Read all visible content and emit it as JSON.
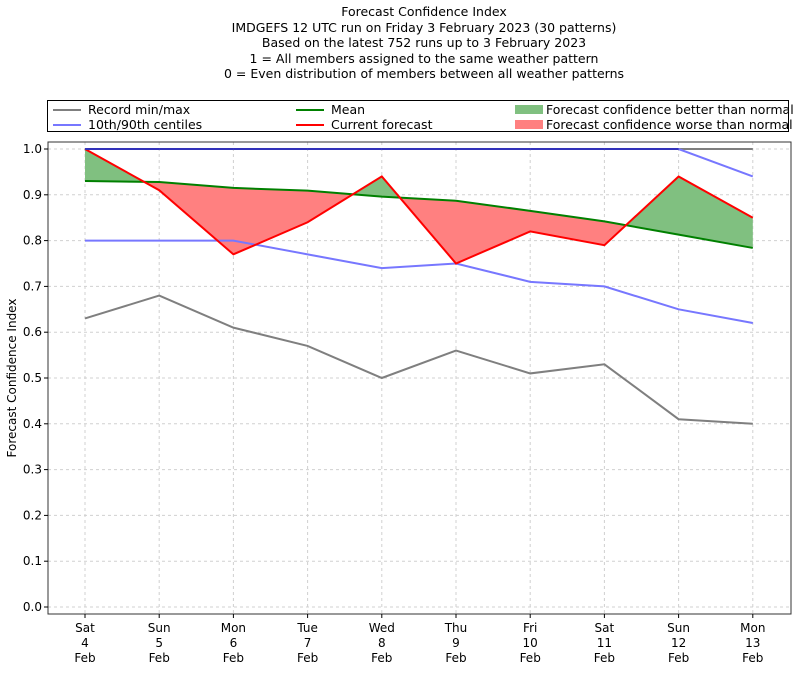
{
  "chart_data": {
    "type": "line",
    "title_lines": [
      "Forecast Confidence Index",
      "IMDGEFS 12 UTC run on Friday 3 February 2023 (30 patterns)",
      "Based on the latest 752 runs up to 3 February 2023",
      "1 = All members assigned to the same weather pattern",
      "0 = Even distribution of members between all weather patterns"
    ],
    "xlabel": "",
    "ylabel": "Forecast Confidence Index",
    "ylim": [
      0.0,
      1.0
    ],
    "yticks": [
      "0.0",
      "0.1",
      "0.2",
      "0.3",
      "0.4",
      "0.5",
      "0.6",
      "0.7",
      "0.8",
      "0.9",
      "1.0"
    ],
    "categories": [
      {
        "day": "Sat",
        "date": "4",
        "month": "Feb"
      },
      {
        "day": "Sun",
        "date": "5",
        "month": "Feb"
      },
      {
        "day": "Mon",
        "date": "6",
        "month": "Feb"
      },
      {
        "day": "Tue",
        "date": "7",
        "month": "Feb"
      },
      {
        "day": "Wed",
        "date": "8",
        "month": "Feb"
      },
      {
        "day": "Thu",
        "date": "9",
        "month": "Feb"
      },
      {
        "day": "Fri",
        "date": "10",
        "month": "Feb"
      },
      {
        "day": "Sat",
        "date": "11",
        "month": "Feb"
      },
      {
        "day": "Sun",
        "date": "12",
        "month": "Feb"
      },
      {
        "day": "Mon",
        "date": "13",
        "month": "Feb"
      }
    ],
    "grid": true,
    "legend_placement": "top",
    "series": [
      {
        "name": "Record max",
        "legend": "Record min/max",
        "color": "#7f7f7f",
        "values": [
          1.0,
          1.0,
          1.0,
          1.0,
          1.0,
          1.0,
          1.0,
          1.0,
          1.0,
          1.0
        ]
      },
      {
        "name": "Record min",
        "legend": "Record min/max",
        "color": "#7f7f7f",
        "values": [
          0.63,
          0.68,
          0.61,
          0.57,
          0.5,
          0.56,
          0.51,
          0.53,
          0.41,
          0.4
        ]
      },
      {
        "name": "90th centile",
        "legend": "10th/90th centiles",
        "color": "#7777ff",
        "values": [
          1.0,
          1.0,
          1.0,
          1.0,
          1.0,
          1.0,
          1.0,
          1.0,
          1.0,
          0.94
        ]
      },
      {
        "name": "10th centile",
        "legend": "10th/90th centiles",
        "color": "#7777ff",
        "values": [
          0.8,
          0.8,
          0.8,
          0.77,
          0.74,
          0.75,
          0.71,
          0.7,
          0.65,
          0.62
        ]
      },
      {
        "name": "Mean",
        "legend": "Mean",
        "color": "#008000",
        "values": [
          0.93,
          0.928,
          0.915,
          0.909,
          0.896,
          0.887,
          0.865,
          0.842,
          0.813,
          0.784
        ]
      },
      {
        "name": "Current forecast",
        "legend": "Current forecast",
        "color": "#ff0000",
        "values": [
          1.0,
          0.91,
          0.77,
          0.84,
          0.94,
          0.75,
          0.82,
          0.79,
          0.94,
          0.85
        ]
      }
    ],
    "fills": [
      {
        "name": "Forecast confidence better than normal",
        "color": "#80c080"
      },
      {
        "name": "Forecast confidence worse than normal",
        "color": "#ff8080"
      }
    ]
  },
  "legend": {
    "record": "Record min/max",
    "centiles": "10th/90th centiles",
    "mean": "Mean",
    "current": "Current forecast",
    "better": "Forecast confidence better than normal",
    "worse": "Forecast confidence worse than normal"
  },
  "colors": {
    "record": "#7f7f7f",
    "centile": "#7777ff",
    "centile_top": "#3333bb",
    "mean": "#008000",
    "current": "#ff0000",
    "better": "#80c080",
    "worse": "#ff8080"
  }
}
